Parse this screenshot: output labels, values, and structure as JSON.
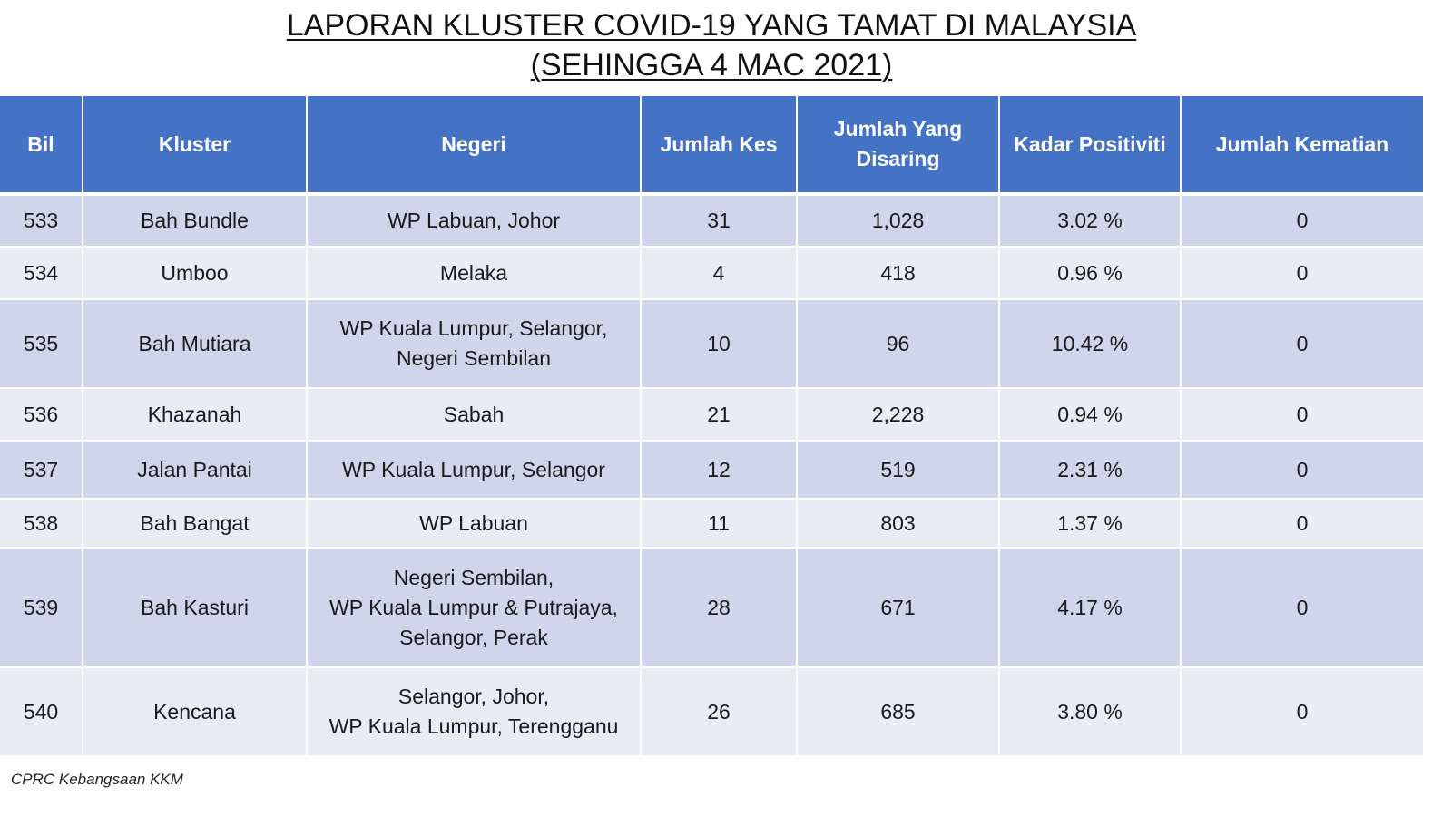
{
  "title": {
    "line1": "LAPORAN KLUSTER COVID-19 YANG TAMAT DI MALAYSIA",
    "line2": "(SEHINGGA 4 MAC 2021)"
  },
  "table": {
    "headers": {
      "bil": "Bil",
      "kluster": "Kluster",
      "negeri": "Negeri",
      "jumlah_kes": "Jumlah Kes",
      "jumlah_disaring": "Jumlah Yang\nDisaring",
      "kadar_positiviti": "Kadar Positiviti",
      "jumlah_kematian": "Jumlah Kematian"
    },
    "rows": [
      {
        "bil": "533",
        "kluster": "Bah Bundle",
        "negeri": "WP Labuan, Johor",
        "jumlah_kes": "31",
        "jumlah_disaring": "1,028",
        "kadar_positiviti": "3.02 %",
        "jumlah_kematian": "0"
      },
      {
        "bil": "534",
        "kluster": "Umboo",
        "negeri": "Melaka",
        "jumlah_kes": "4",
        "jumlah_disaring": "418",
        "kadar_positiviti": "0.96 %",
        "jumlah_kematian": "0"
      },
      {
        "bil": "535",
        "kluster": "Bah Mutiara",
        "negeri": "WP Kuala Lumpur, Selangor,\nNegeri Sembilan",
        "jumlah_kes": "10",
        "jumlah_disaring": "96",
        "kadar_positiviti": "10.42 %",
        "jumlah_kematian": "0"
      },
      {
        "bil": "536",
        "kluster": "Khazanah",
        "negeri": "Sabah",
        "jumlah_kes": "21",
        "jumlah_disaring": "2,228",
        "kadar_positiviti": "0.94 %",
        "jumlah_kematian": "0"
      },
      {
        "bil": "537",
        "kluster": "Jalan Pantai",
        "negeri": "WP Kuala Lumpur, Selangor",
        "jumlah_kes": "12",
        "jumlah_disaring": "519",
        "kadar_positiviti": "2.31 %",
        "jumlah_kematian": "0"
      },
      {
        "bil": "538",
        "kluster": "Bah Bangat",
        "negeri": "WP Labuan",
        "jumlah_kes": "11",
        "jumlah_disaring": "803",
        "kadar_positiviti": "1.37 %",
        "jumlah_kematian": "0"
      },
      {
        "bil": "539",
        "kluster": "Bah Kasturi",
        "negeri": "Negeri Sembilan,\nWP Kuala Lumpur & Putrajaya,\nSelangor, Perak",
        "jumlah_kes": "28",
        "jumlah_disaring": "671",
        "kadar_positiviti": "4.17 %",
        "jumlah_kematian": "0"
      },
      {
        "bil": "540",
        "kluster": "Kencana",
        "negeri": "Selangor,  Johor,\nWP Kuala Lumpur, Terengganu",
        "jumlah_kes": "26",
        "jumlah_disaring": "685",
        "kadar_positiviti": "3.80 %",
        "jumlah_kematian": "0"
      }
    ]
  },
  "footnote": "CPRC Kebangsaan KKM",
  "colors": {
    "header_bg": "#4472c4",
    "row_odd": "#cfd5ea",
    "row_even": "#e9ebf5"
  }
}
